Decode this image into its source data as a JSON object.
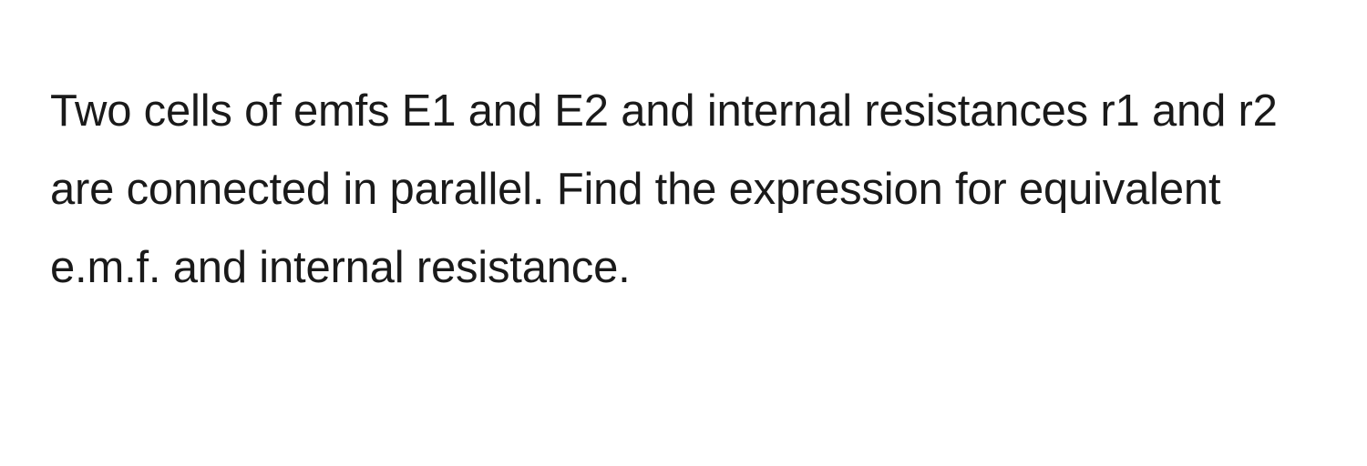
{
  "question": {
    "text": "Two cells of emfs E1 and E2 and internal resistances r1 and r2 are connected in parallel. Find the expression for equivalent e.m.f. and internal resistance.",
    "text_color": "#1a1a1a",
    "font_size": 49,
    "line_height": 1.75,
    "background_color": "#ffffff"
  }
}
